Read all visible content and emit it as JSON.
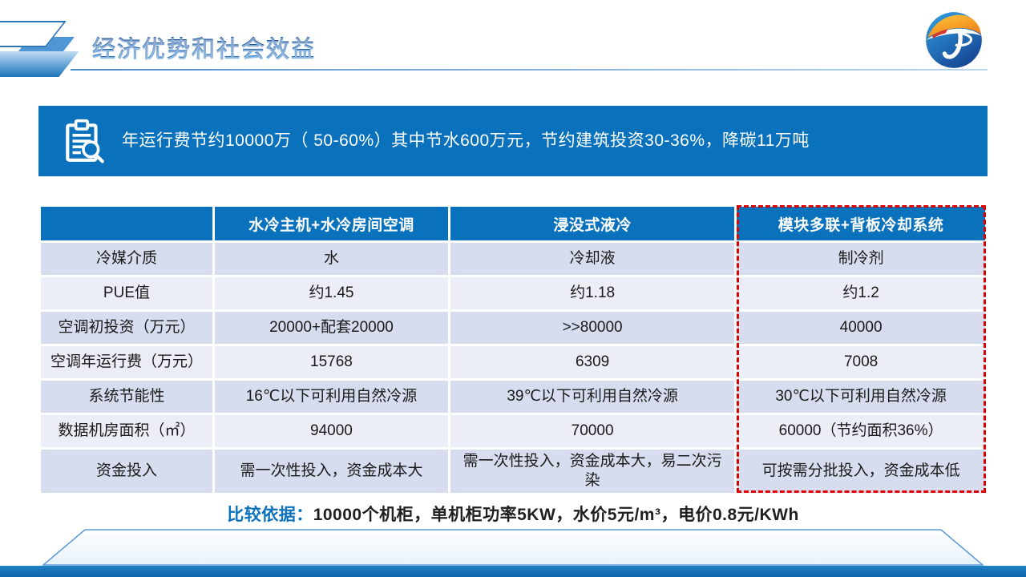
{
  "header": {
    "title": "经济优势和社会效益"
  },
  "banner": {
    "icon": "clipboard-search-icon",
    "text": "年运行费节约10000万（ 50-60%）其中节水600万元，节约建筑投资30-36%，降碳11万吨"
  },
  "table": {
    "columns": [
      "",
      "水冷主机+水冷房间空调",
      "浸没式液冷",
      "模块多联+背板冷却系统"
    ],
    "rows": [
      {
        "label": "冷媒介质",
        "values": [
          "水",
          "冷却液",
          "制冷剂"
        ]
      },
      {
        "label": "PUE值",
        "values": [
          "约1.45",
          "约1.18",
          "约1.2"
        ]
      },
      {
        "label": "空调初投资（万元）",
        "values": [
          "20000+配套20000",
          ">>80000",
          "40000"
        ]
      },
      {
        "label": "空调年运行费（万元）",
        "values": [
          "15768",
          "6309",
          "7008"
        ]
      },
      {
        "label": "系统节能性",
        "values": [
          "16℃以下可利用自然冷源",
          "39℃以下可利用自然冷源",
          "30℃以下可利用自然冷源"
        ]
      },
      {
        "label": "数据机房面积（㎡）",
        "values": [
          "94000",
          "70000",
          "60000（节约面积36%）"
        ]
      },
      {
        "label": "资金投入",
        "values": [
          "需一次性投入，资金成本大",
          "需一次性投入，资金成本大，易二次污染",
          "可按需分批投入，资金成本低"
        ]
      }
    ],
    "highlight_column_index": 3,
    "highlight_style": "red-dashed-border"
  },
  "footnote": {
    "label": "比较依据：",
    "text": "10000个机柜，单机柜功率5KW，水价5元/m³，电价0.8元/KWh"
  },
  "colors": {
    "primary_blue": "#0A71BD",
    "title_blue": "#1E64B0",
    "row_dark": "#D7DDEF",
    "row_light": "#EBEEF7",
    "highlight_red": "#DF0000",
    "logo_orange": "#F59B20",
    "logo_blue": "#1B4A9B"
  }
}
